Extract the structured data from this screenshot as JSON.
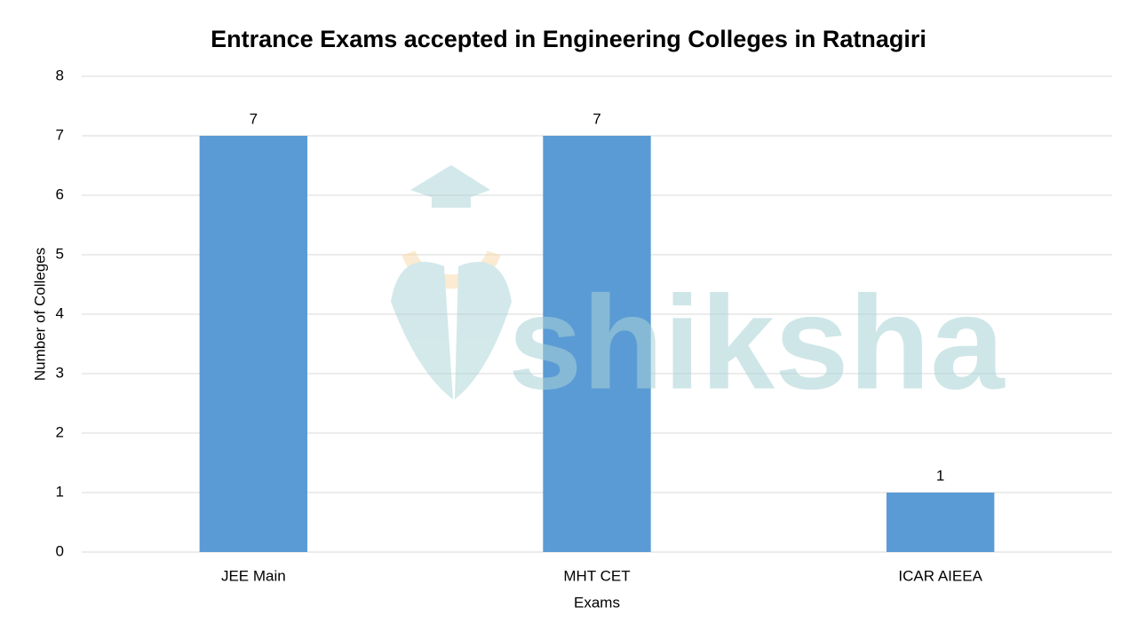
{
  "chart_data": {
    "type": "bar",
    "title": "Entrance Exams accepted in Engineering Colleges in Ratnagiri",
    "x_label": "Exams",
    "y_label": "Number of Colleges",
    "categories": [
      "JEE Main",
      "MHT CET",
      "ICAR AIEEA"
    ],
    "values": [
      7,
      7,
      1
    ],
    "color": "#5b9bd5",
    "ylim": [
      0,
      8
    ],
    "yticks": [
      0,
      1,
      2,
      3,
      4,
      5,
      6,
      7,
      8
    ],
    "grid": true,
    "data_labels": true,
    "watermark": "shiksha"
  }
}
